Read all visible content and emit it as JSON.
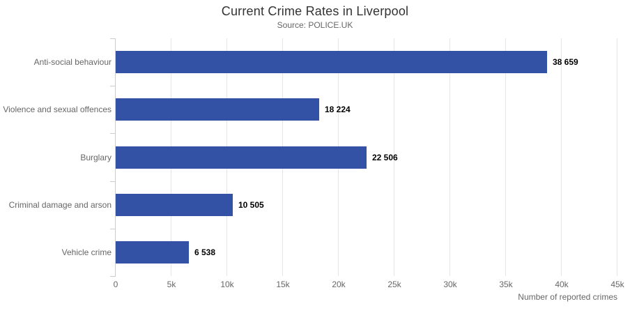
{
  "chart_data": {
    "type": "bar",
    "orientation": "horizontal",
    "title": "Current Crime Rates in Liverpool",
    "subtitle": "Source: POLICE.UK",
    "categories": [
      "Anti-social behaviour",
      "Violence and sexual offences",
      "Burglary",
      "Criminal damage and arson",
      "Vehicle crime"
    ],
    "values": [
      38659,
      18224,
      22506,
      10505,
      6538
    ],
    "value_labels": [
      "38 659",
      "18 224",
      "22 506",
      "10 505",
      "6 538"
    ],
    "xlabel": "Number of reported crimes",
    "xlim": [
      0,
      45000
    ],
    "x_ticks": [
      0,
      5000,
      10000,
      15000,
      20000,
      25000,
      30000,
      35000,
      40000,
      45000
    ],
    "x_tick_labels": [
      "0",
      "5k",
      "10k",
      "15k",
      "20k",
      "25k",
      "30k",
      "35k",
      "40k",
      "45k"
    ],
    "grid": true,
    "legend": "none",
    "bar_color": "#3351a5",
    "grid_color": "#e6e6e6",
    "axis_line_color": "#cccccc",
    "label_color": "#666666",
    "value_label_color": "#000000",
    "title_color": "#333333"
  }
}
